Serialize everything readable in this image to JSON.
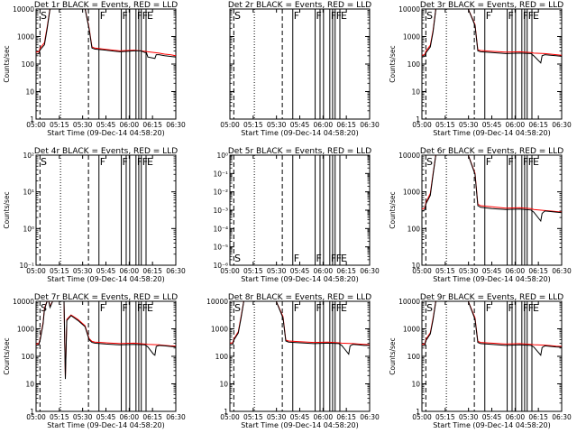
{
  "chart_data": [
    {
      "panel": "det-1r",
      "title": "Det 1r BLACK = Events, RED = LLD",
      "type": "line",
      "yscale": "log",
      "ylim": [
        1,
        10000
      ],
      "ytick_labels": [
        "1",
        "10",
        "100",
        "1000",
        "10000"
      ],
      "ylabel": "Counts/sec",
      "xlabel": "Start Time (09-Dec-14 04:58:20)",
      "xtick_labels": [
        "05:00",
        "05:15",
        "05:30",
        "05:45",
        "06:00",
        "06:15",
        "06:30"
      ],
      "xlim": [
        0,
        100
      ],
      "markers": [
        {
          "text": "S",
          "x": 2.6
        },
        {
          "text": "F",
          "x": 45
        },
        {
          "text": "F",
          "x": 61
        },
        {
          "text": "F",
          "x": 71.5
        },
        {
          "text": "F",
          "x": 75.3
        },
        {
          "text": "E",
          "x": 78.7
        }
      ],
      "series": [
        {
          "name": "BLACK = Events",
          "color": "#000000",
          "x": [
            0,
            2,
            3,
            6,
            8,
            10,
            25,
            35,
            38,
            40,
            42,
            50,
            60,
            70,
            75,
            78,
            79,
            80,
            85,
            86,
            88,
            92,
            96,
            100
          ],
          "y": [
            230,
            240,
            330,
            500,
            2000,
            12000,
            12000,
            11000,
            1800,
            380,
            350,
            320,
            280,
            300,
            300,
            260,
            260,
            180,
            160,
            220,
            220,
            200,
            190,
            180
          ]
        },
        {
          "name": "RED = LLD",
          "color": "#ff0000",
          "x": [
            0,
            2,
            3,
            6,
            8,
            10,
            25,
            35,
            38,
            40,
            42,
            50,
            60,
            70,
            78,
            80,
            88,
            92,
            96,
            100
          ],
          "y": [
            270,
            280,
            380,
            600,
            2300,
            12000,
            12000,
            11000,
            2000,
            420,
            380,
            340,
            300,
            320,
            290,
            280,
            250,
            230,
            220,
            200
          ]
        }
      ]
    },
    {
      "panel": "det-2r",
      "title": "Det 2r BLACK = Events, RED = LLD",
      "type": "line",
      "yscale": "log",
      "ylim": [
        1,
        10000
      ],
      "ytick_labels": [],
      "ylabel": "",
      "xlabel": "Start Time (09-Dec-14 04:58:20)",
      "xtick_labels": [
        "05:00",
        "05:15",
        "05:30",
        "05:45",
        "06:00",
        "06:15",
        "06:30"
      ],
      "xlim": [
        0,
        100
      ],
      "markers": [
        {
          "text": "S",
          "x": 2.6
        },
        {
          "text": "F",
          "x": 45
        },
        {
          "text": "F",
          "x": 61
        },
        {
          "text": "F",
          "x": 71.5
        },
        {
          "text": "F",
          "x": 75.3
        },
        {
          "text": "E",
          "x": 78.7
        }
      ],
      "series": []
    },
    {
      "panel": "det-3r",
      "title": "Det 3r BLACK = Events, RED = LLD",
      "type": "line",
      "yscale": "log",
      "ylim": [
        1,
        10000
      ],
      "ytick_labels": [
        "1",
        "10",
        "100",
        "1000",
        "10000"
      ],
      "ylabel": "Counts/sec",
      "xlabel": "Start Time (09-Dec-14 04:58:20)",
      "xtick_labels": [
        "05:00",
        "05:15",
        "05:30",
        "05:45",
        "06:00",
        "06:15",
        "06:30"
      ],
      "xlim": [
        0,
        100
      ],
      "markers": [
        {
          "text": "S",
          "x": 2.6
        },
        {
          "text": "F",
          "x": 45
        },
        {
          "text": "F",
          "x": 61
        },
        {
          "text": "F",
          "x": 71.5
        },
        {
          "text": "F",
          "x": 75.3
        },
        {
          "text": "E",
          "x": 78.7
        }
      ],
      "series": [
        {
          "name": "BLACK = Events",
          "color": "#000000",
          "x": [
            0,
            2,
            3,
            6,
            8,
            10,
            25,
            33,
            38,
            40,
            42,
            50,
            60,
            70,
            78,
            80,
            85,
            86,
            88,
            92,
            96,
            100
          ],
          "y": [
            180,
            190,
            260,
            420,
            1500,
            12000,
            12000,
            11000,
            2500,
            300,
            280,
            260,
            240,
            250,
            240,
            200,
            110,
            200,
            220,
            210,
            200,
            190
          ]
        },
        {
          "name": "RED = LLD",
          "color": "#ff0000",
          "x": [
            0,
            2,
            3,
            6,
            8,
            10,
            25,
            33,
            38,
            40,
            42,
            50,
            60,
            70,
            78,
            80,
            88,
            92,
            96,
            100
          ],
          "y": [
            210,
            220,
            300,
            480,
            1700,
            12000,
            12000,
            11000,
            2700,
            330,
            310,
            290,
            270,
            280,
            260,
            250,
            240,
            230,
            220,
            210
          ]
        }
      ]
    },
    {
      "panel": "det-4r",
      "title": "Det 4r BLACK = Events, RED = LLD",
      "type": "line",
      "yscale": "log",
      "ylim": [
        0.1,
        100
      ],
      "ytick_labels": [
        "10⁻¹",
        "10⁰",
        "10¹",
        "10²"
      ],
      "ylabel": "Counts/sec",
      "xlabel": "Start Time (09-Dec-14 04:58:20)",
      "xtick_labels": [
        "05:00",
        "05:15",
        "05:30",
        "05:45",
        "06:00",
        "06:15",
        "06:30"
      ],
      "xlim": [
        0,
        100
      ],
      "markers": [
        {
          "text": "S",
          "x": 2.6
        },
        {
          "text": "F",
          "x": 45
        },
        {
          "text": "F",
          "x": 61
        },
        {
          "text": "F",
          "x": 71.5
        },
        {
          "text": "F",
          "x": 75.3
        },
        {
          "text": "E",
          "x": 78.7
        }
      ],
      "series": []
    },
    {
      "panel": "det-5r",
      "title": "Det 5r BLACK = Events, RED = LLD",
      "type": "line",
      "yscale": "log",
      "ylim": [
        1e-06,
        1.0
      ],
      "ytick_labels": [
        "10⁻⁶",
        "10⁻⁵",
        "10⁻⁴",
        "10⁻³",
        "10⁻²",
        "10⁻¹",
        "10⁰"
      ],
      "ylabel": "",
      "xlabel": "Start Time (09-Dec-14 04:58:20)",
      "xtick_labels": [
        "05:00",
        "05:15",
        "05:30",
        "05:45",
        "06:00",
        "06:15",
        "06:30"
      ],
      "xlim": [
        0,
        100
      ],
      "markers": [
        {
          "text": "S",
          "x": 2.6
        },
        {
          "text": "F",
          "x": 45
        },
        {
          "text": "F",
          "x": 61
        },
        {
          "text": "F",
          "x": 71.5
        },
        {
          "text": "F",
          "x": 75.3
        },
        {
          "text": "E",
          "x": 78.7
        }
      ],
      "series": []
    },
    {
      "panel": "det-6r",
      "title": "Det 6r BLACK = Events, RED = LLD",
      "type": "line",
      "yscale": "log",
      "ylim": [
        10,
        10000
      ],
      "ytick_labels": [
        "10",
        "100",
        "1000",
        "10000"
      ],
      "ylabel": "Counts/sec",
      "xlabel": "Start Time (09-Dec-14 04:58:20)",
      "xtick_labels": [
        "05:00",
        "05:15",
        "05:30",
        "05:45",
        "06:00",
        "06:15",
        "06:30"
      ],
      "xlim": [
        0,
        100
      ],
      "markers": [
        {
          "text": "S",
          "x": 2.6
        },
        {
          "text": "F",
          "x": 45
        },
        {
          "text": "F",
          "x": 61
        },
        {
          "text": "F",
          "x": 71.5
        },
        {
          "text": "F",
          "x": 75.3
        },
        {
          "text": "E",
          "x": 78.7
        }
      ],
      "series": [
        {
          "name": "BLACK = Events",
          "color": "#000000",
          "x": [
            0,
            2,
            3,
            6,
            8,
            10,
            25,
            33,
            38,
            40,
            42,
            50,
            60,
            70,
            78,
            80,
            85,
            86,
            88,
            92,
            96,
            100
          ],
          "y": [
            300,
            320,
            480,
            800,
            3000,
            12000,
            12000,
            11000,
            3000,
            420,
            380,
            350,
            330,
            340,
            320,
            280,
            160,
            260,
            300,
            290,
            280,
            270
          ]
        },
        {
          "name": "RED = LLD",
          "color": "#ff0000",
          "x": [
            0,
            2,
            3,
            6,
            8,
            10,
            25,
            33,
            38,
            40,
            42,
            50,
            60,
            70,
            78,
            80,
            88,
            92,
            96,
            100
          ],
          "y": [
            340,
            360,
            520,
            900,
            3200,
            12000,
            12000,
            11000,
            3200,
            460,
            420,
            390,
            360,
            370,
            350,
            330,
            310,
            300,
            290,
            280
          ]
        }
      ]
    },
    {
      "panel": "det-7r",
      "title": "Det 7r BLACK = Events, RED = LLD",
      "type": "line",
      "yscale": "log",
      "ylim": [
        1,
        10000
      ],
      "ytick_labels": [
        "1",
        "10",
        "100",
        "1000",
        "10000"
      ],
      "ylabel": "Counts/sec",
      "xlabel": "Start Time (09-Dec-14 04:58:20)",
      "xtick_labels": [
        "05:00",
        "05:15",
        "05:30",
        "05:45",
        "06:00",
        "06:15",
        "06:30"
      ],
      "xlim": [
        0,
        100
      ],
      "markers": [
        {
          "text": "S",
          "x": 2.6
        },
        {
          "text": "F",
          "x": 45
        },
        {
          "text": "F",
          "x": 61
        },
        {
          "text": "F",
          "x": 71.5
        },
        {
          "text": "F",
          "x": 75.3
        },
        {
          "text": "E",
          "x": 78.7
        }
      ],
      "series": [
        {
          "name": "BLACK = Events",
          "color": "#000000",
          "x": [
            0,
            2,
            3,
            5,
            6,
            8,
            9,
            10,
            12,
            13,
            20,
            21,
            22,
            25,
            30,
            35,
            38,
            40,
            42,
            50,
            60,
            70,
            78,
            80,
            84,
            85,
            86,
            88,
            92,
            96,
            100
          ],
          "y": [
            250,
            260,
            400,
            1500,
            5000,
            12000,
            12000,
            6000,
            12000,
            12000,
            12000,
            15,
            2000,
            3000,
            2000,
            1200,
            400,
            320,
            300,
            280,
            260,
            270,
            260,
            220,
            120,
            110,
            230,
            250,
            240,
            230,
            220
          ]
        },
        {
          "name": "RED = LLD",
          "color": "#ff0000",
          "x": [
            0,
            2,
            3,
            5,
            6,
            8,
            9,
            10,
            12,
            13,
            20,
            21,
            22,
            25,
            30,
            35,
            38,
            40,
            42,
            50,
            60,
            70,
            78,
            80,
            88,
            92,
            96,
            100
          ],
          "y": [
            280,
            290,
            440,
            1700,
            5500,
            12000,
            12000,
            6500,
            12000,
            12000,
            12000,
            16,
            2200,
            3200,
            2200,
            1300,
            440,
            350,
            330,
            310,
            290,
            300,
            280,
            270,
            260,
            250,
            240,
            235
          ]
        }
      ]
    },
    {
      "panel": "det-8r",
      "title": "Det 8r BLACK = Events, RED = LLD",
      "type": "line",
      "yscale": "log",
      "ylim": [
        1,
        10000
      ],
      "ytick_labels": [
        "1",
        "10",
        "100",
        "1000",
        "10000"
      ],
      "ylabel": "",
      "xlabel": "Start Time (09-Dec-14 04:58:20)",
      "xtick_labels": [
        "05:00",
        "05:15",
        "05:30",
        "05:45",
        "06:00",
        "06:15",
        "06:30"
      ],
      "xlim": [
        0,
        100
      ],
      "markers": [
        {
          "text": "S",
          "x": 2.6
        },
        {
          "text": "F",
          "x": 45
        },
        {
          "text": "F",
          "x": 61
        },
        {
          "text": "F",
          "x": 71.5
        },
        {
          "text": "F",
          "x": 75.3
        },
        {
          "text": "E",
          "x": 78.7
        }
      ],
      "series": [
        {
          "name": "BLACK = Events",
          "color": "#000000",
          "x": [
            0,
            2,
            3,
            6,
            8,
            10,
            25,
            33,
            38,
            40,
            42,
            50,
            60,
            70,
            78,
            80,
            85,
            86,
            88,
            92,
            96,
            100
          ],
          "y": [
            260,
            270,
            400,
            700,
            2500,
            12000,
            12000,
            11000,
            2500,
            360,
            330,
            310,
            290,
            300,
            290,
            250,
            120,
            240,
            270,
            260,
            250,
            250
          ]
        },
        {
          "name": "RED = LLD",
          "color": "#ff0000",
          "x": [
            0,
            2,
            3,
            6,
            8,
            10,
            25,
            33,
            38,
            40,
            42,
            50,
            60,
            70,
            78,
            80,
            88,
            92,
            96,
            100
          ],
          "y": [
            300,
            310,
            440,
            780,
            2800,
            12000,
            12000,
            11000,
            2800,
            390,
            360,
            340,
            320,
            330,
            310,
            300,
            290,
            280,
            270,
            265
          ]
        }
      ]
    },
    {
      "panel": "det-9r",
      "title": "Det 9r BLACK = Events, RED = LLD",
      "type": "line",
      "yscale": "log",
      "ylim": [
        1,
        10000
      ],
      "ytick_labels": [
        "1",
        "10",
        "100",
        "1000",
        "10000"
      ],
      "ylabel": "Counts/sec",
      "xlabel": "Start Time (09-Dec-14 04:58:20)",
      "xtick_labels": [
        "05:00",
        "05:15",
        "05:30",
        "05:45",
        "06:00",
        "06:15",
        "06:30"
      ],
      "xlim": [
        0,
        100
      ],
      "markers": [
        {
          "text": "S",
          "x": 2.6
        },
        {
          "text": "F",
          "x": 45
        },
        {
          "text": "F",
          "x": 61
        },
        {
          "text": "F",
          "x": 71.5
        },
        {
          "text": "F",
          "x": 75.3
        },
        {
          "text": "E",
          "x": 78.7
        }
      ],
      "series": [
        {
          "name": "BLACK = Events",
          "color": "#000000",
          "x": [
            0,
            2,
            3,
            6,
            8,
            10,
            25,
            33,
            38,
            40,
            42,
            50,
            60,
            70,
            78,
            80,
            85,
            86,
            88,
            92,
            96,
            100
          ],
          "y": [
            240,
            250,
            380,
            650,
            2200,
            12000,
            12000,
            11000,
            2200,
            320,
            290,
            270,
            250,
            260,
            250,
            220,
            110,
            210,
            240,
            230,
            220,
            215
          ]
        },
        {
          "name": "RED = LLD",
          "color": "#ff0000",
          "x": [
            0,
            2,
            3,
            6,
            8,
            10,
            25,
            33,
            38,
            40,
            42,
            50,
            60,
            70,
            78,
            80,
            88,
            92,
            96,
            100
          ],
          "y": [
            270,
            280,
            420,
            720,
            2500,
            12000,
            12000,
            11000,
            2500,
            350,
            320,
            300,
            280,
            290,
            270,
            265,
            255,
            245,
            235,
            230
          ]
        }
      ]
    }
  ]
}
